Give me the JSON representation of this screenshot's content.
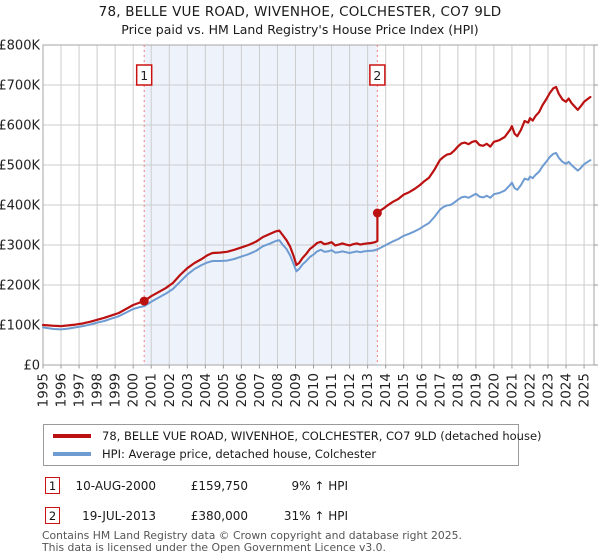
{
  "title": "78, BELLE VUE ROAD, WIVENHOE, COLCHESTER, CO7 9LD",
  "subtitle": "Price paid vs. HM Land Registry's House Price Index (HPI)",
  "chart_data": {
    "type": "line",
    "title": "78, BELLE VUE ROAD, WIVENHOE, COLCHESTER, CO7 9LD",
    "subtitle": "Price paid vs. HM Land Registry's House Price Index (HPI)",
    "grid": true,
    "legend_position": "bottom",
    "x_axis": {
      "min": 1995,
      "max": 2025.55,
      "tick_labels": [
        "1995",
        "1996",
        "1997",
        "1998",
        "1999",
        "2000",
        "2001",
        "2002",
        "2003",
        "2004",
        "2005",
        "2006",
        "2007",
        "2008",
        "2009",
        "2010",
        "2011",
        "2012",
        "2013",
        "2014",
        "2015",
        "2016",
        "2017",
        "2018",
        "2019",
        "2020",
        "2021",
        "2022",
        "2023",
        "2024",
        "2025"
      ]
    },
    "y_axis": {
      "unit": "GBP_thousands",
      "min": 0,
      "max": 800,
      "tick_values": [
        0,
        100,
        200,
        300,
        400,
        500,
        600,
        700,
        800
      ],
      "tick_labels": [
        "£0",
        "£100K",
        "£200K",
        "£300K",
        "£400K",
        "£500K",
        "£600K",
        "£700K",
        "£800K"
      ]
    },
    "shaded_region": {
      "from": 2000.61,
      "to": 2013.54,
      "color": "#eef3fb"
    },
    "event_lines": [
      {
        "label": "1",
        "x": 2000.61
      },
      {
        "label": "2",
        "x": 2013.54
      }
    ],
    "sale_points": [
      {
        "label": "1",
        "x": 2000.61,
        "y": 159.75
      },
      {
        "label": "2",
        "x": 2013.54,
        "y": 380
      }
    ],
    "series": [
      {
        "name": "78, BELLE VUE ROAD, WIVENHOE, COLCHESTER, CO7 9LD (detached house)",
        "color": "#bb1111",
        "width": 2.2,
        "points": [
          [
            1995.0,
            100
          ],
          [
            1995.3,
            99
          ],
          [
            1995.6,
            98
          ],
          [
            1996.0,
            97
          ],
          [
            1996.4,
            99
          ],
          [
            1996.8,
            101
          ],
          [
            1997.2,
            104
          ],
          [
            1997.6,
            108
          ],
          [
            1998.0,
            113
          ],
          [
            1998.4,
            118
          ],
          [
            1998.8,
            124
          ],
          [
            1999.2,
            130
          ],
          [
            1999.6,
            140
          ],
          [
            2000.0,
            150
          ],
          [
            2000.3,
            155
          ],
          [
            2000.61,
            159.75
          ],
          [
            2001.0,
            172
          ],
          [
            2001.4,
            182
          ],
          [
            2001.8,
            192
          ],
          [
            2002.2,
            205
          ],
          [
            2002.6,
            225
          ],
          [
            2003.0,
            242
          ],
          [
            2003.4,
            255
          ],
          [
            2003.8,
            265
          ],
          [
            2004.1,
            274
          ],
          [
            2004.4,
            280
          ],
          [
            2004.8,
            281
          ],
          [
            2005.2,
            283
          ],
          [
            2005.6,
            288
          ],
          [
            2006.0,
            294
          ],
          [
            2006.4,
            300
          ],
          [
            2006.8,
            308
          ],
          [
            2007.2,
            320
          ],
          [
            2007.6,
            328
          ],
          [
            2007.9,
            334
          ],
          [
            2008.1,
            336
          ],
          [
            2008.3,
            324
          ],
          [
            2008.5,
            312
          ],
          [
            2008.7,
            296
          ],
          [
            2008.9,
            272
          ],
          [
            2009.05,
            250
          ],
          [
            2009.2,
            255
          ],
          [
            2009.4,
            268
          ],
          [
            2009.6,
            278
          ],
          [
            2009.8,
            290
          ],
          [
            2010.0,
            297
          ],
          [
            2010.2,
            305
          ],
          [
            2010.4,
            308
          ],
          [
            2010.6,
            302
          ],
          [
            2010.8,
            304
          ],
          [
            2011.0,
            307
          ],
          [
            2011.2,
            299
          ],
          [
            2011.4,
            301
          ],
          [
            2011.6,
            304
          ],
          [
            2011.8,
            301
          ],
          [
            2012.0,
            299
          ],
          [
            2012.2,
            302
          ],
          [
            2012.4,
            304
          ],
          [
            2012.6,
            301
          ],
          [
            2012.8,
            303
          ],
          [
            2013.0,
            304
          ],
          [
            2013.2,
            305
          ],
          [
            2013.4,
            307
          ],
          [
            2013.54,
            310
          ],
          [
            2013.54,
            380
          ],
          [
            2013.7,
            386
          ],
          [
            2013.9,
            392
          ],
          [
            2014.1,
            399
          ],
          [
            2014.4,
            408
          ],
          [
            2014.7,
            415
          ],
          [
            2015.0,
            426
          ],
          [
            2015.3,
            432
          ],
          [
            2015.6,
            440
          ],
          [
            2015.9,
            450
          ],
          [
            2016.1,
            458
          ],
          [
            2016.4,
            468
          ],
          [
            2016.7,
            488
          ],
          [
            2017.0,
            512
          ],
          [
            2017.2,
            520
          ],
          [
            2017.4,
            526
          ],
          [
            2017.6,
            528
          ],
          [
            2017.8,
            536
          ],
          [
            2018.0,
            546
          ],
          [
            2018.2,
            554
          ],
          [
            2018.4,
            556
          ],
          [
            2018.6,
            552
          ],
          [
            2018.8,
            558
          ],
          [
            2019.0,
            560
          ],
          [
            2019.2,
            550
          ],
          [
            2019.4,
            548
          ],
          [
            2019.6,
            553
          ],
          [
            2019.8,
            546
          ],
          [
            2020.0,
            558
          ],
          [
            2020.3,
            562
          ],
          [
            2020.6,
            570
          ],
          [
            2020.9,
            588
          ],
          [
            2021.0,
            597
          ],
          [
            2021.15,
            578
          ],
          [
            2021.3,
            572
          ],
          [
            2021.5,
            588
          ],
          [
            2021.7,
            610
          ],
          [
            2021.9,
            606
          ],
          [
            2022.0,
            617
          ],
          [
            2022.15,
            611
          ],
          [
            2022.3,
            622
          ],
          [
            2022.5,
            632
          ],
          [
            2022.7,
            650
          ],
          [
            2022.9,
            664
          ],
          [
            2023.1,
            680
          ],
          [
            2023.3,
            692
          ],
          [
            2023.45,
            695
          ],
          [
            2023.6,
            678
          ],
          [
            2023.8,
            664
          ],
          [
            2024.0,
            658
          ],
          [
            2024.15,
            666
          ],
          [
            2024.3,
            655
          ],
          [
            2024.5,
            645
          ],
          [
            2024.65,
            638
          ],
          [
            2024.8,
            646
          ],
          [
            2025.0,
            658
          ],
          [
            2025.2,
            665
          ],
          [
            2025.35,
            670
          ]
        ]
      },
      {
        "name": "HPI: Average price, detached house, Colchester",
        "color": "#6e9bd2",
        "width": 2.0,
        "points": [
          [
            1995.0,
            94
          ],
          [
            1995.3,
            92
          ],
          [
            1995.6,
            90
          ],
          [
            1996.0,
            89
          ],
          [
            1996.4,
            91
          ],
          [
            1996.8,
            94
          ],
          [
            1997.2,
            97
          ],
          [
            1997.6,
            101
          ],
          [
            1998.0,
            106
          ],
          [
            1998.4,
            110
          ],
          [
            1998.8,
            116
          ],
          [
            1999.2,
            122
          ],
          [
            1999.6,
            131
          ],
          [
            2000.0,
            140
          ],
          [
            2000.3,
            144
          ],
          [
            2000.61,
            147
          ],
          [
            2001.0,
            158
          ],
          [
            2001.4,
            168
          ],
          [
            2001.8,
            178
          ],
          [
            2002.2,
            190
          ],
          [
            2002.6,
            208
          ],
          [
            2003.0,
            226
          ],
          [
            2003.4,
            240
          ],
          [
            2003.8,
            250
          ],
          [
            2004.1,
            256
          ],
          [
            2004.4,
            260
          ],
          [
            2004.8,
            260
          ],
          [
            2005.2,
            261
          ],
          [
            2005.6,
            265
          ],
          [
            2006.0,
            271
          ],
          [
            2006.4,
            277
          ],
          [
            2006.8,
            285
          ],
          [
            2007.2,
            297
          ],
          [
            2007.6,
            304
          ],
          [
            2007.9,
            310
          ],
          [
            2008.1,
            312
          ],
          [
            2008.3,
            300
          ],
          [
            2008.5,
            290
          ],
          [
            2008.7,
            274
          ],
          [
            2008.9,
            252
          ],
          [
            2009.05,
            234
          ],
          [
            2009.2,
            240
          ],
          [
            2009.4,
            252
          ],
          [
            2009.6,
            260
          ],
          [
            2009.8,
            270
          ],
          [
            2010.0,
            276
          ],
          [
            2010.2,
            284
          ],
          [
            2010.4,
            288
          ],
          [
            2010.6,
            283
          ],
          [
            2010.8,
            284
          ],
          [
            2011.0,
            287
          ],
          [
            2011.2,
            281
          ],
          [
            2011.4,
            282
          ],
          [
            2011.6,
            284
          ],
          [
            2011.8,
            282
          ],
          [
            2012.0,
            280
          ],
          [
            2012.2,
            282
          ],
          [
            2012.4,
            284
          ],
          [
            2012.6,
            282
          ],
          [
            2012.8,
            284
          ],
          [
            2013.0,
            285
          ],
          [
            2013.3,
            286
          ],
          [
            2013.54,
            289
          ],
          [
            2013.8,
            295
          ],
          [
            2014.1,
            302
          ],
          [
            2014.4,
            309
          ],
          [
            2014.7,
            315
          ],
          [
            2015.0,
            323
          ],
          [
            2015.3,
            328
          ],
          [
            2015.6,
            334
          ],
          [
            2015.9,
            341
          ],
          [
            2016.1,
            347
          ],
          [
            2016.4,
            355
          ],
          [
            2016.7,
            370
          ],
          [
            2017.0,
            388
          ],
          [
            2017.2,
            395
          ],
          [
            2017.4,
            399
          ],
          [
            2017.6,
            400
          ],
          [
            2017.8,
            406
          ],
          [
            2018.0,
            413
          ],
          [
            2018.2,
            419
          ],
          [
            2018.4,
            421
          ],
          [
            2018.6,
            418
          ],
          [
            2018.8,
            423
          ],
          [
            2019.0,
            428
          ],
          [
            2019.2,
            421
          ],
          [
            2019.4,
            419
          ],
          [
            2019.6,
            423
          ],
          [
            2019.8,
            418
          ],
          [
            2020.0,
            427
          ],
          [
            2020.3,
            430
          ],
          [
            2020.6,
            436
          ],
          [
            2020.9,
            450
          ],
          [
            2021.0,
            456
          ],
          [
            2021.15,
            442
          ],
          [
            2021.3,
            438
          ],
          [
            2021.5,
            450
          ],
          [
            2021.7,
            466
          ],
          [
            2021.9,
            463
          ],
          [
            2022.0,
            471
          ],
          [
            2022.15,
            467
          ],
          [
            2022.3,
            475
          ],
          [
            2022.5,
            483
          ],
          [
            2022.7,
            497
          ],
          [
            2022.9,
            508
          ],
          [
            2023.1,
            520
          ],
          [
            2023.3,
            528
          ],
          [
            2023.45,
            530
          ],
          [
            2023.6,
            518
          ],
          [
            2023.8,
            508
          ],
          [
            2024.0,
            503
          ],
          [
            2024.15,
            508
          ],
          [
            2024.3,
            500
          ],
          [
            2024.5,
            492
          ],
          [
            2024.65,
            486
          ],
          [
            2024.8,
            492
          ],
          [
            2025.0,
            502
          ],
          [
            2025.2,
            508
          ],
          [
            2025.35,
            512
          ]
        ]
      }
    ],
    "colors": {
      "grid": "#cccccc",
      "plot_border": "#a6a6a6",
      "event_line": "#f47f7f",
      "marker_box_border": "#cc1111",
      "sale_dot": "#bb1111",
      "axis_text": "#222222"
    }
  },
  "legend": {
    "items": [
      {
        "label": "78, BELLE VUE ROAD, WIVENHOE, COLCHESTER, CO7 9LD (detached house)",
        "color": "#bb1111"
      },
      {
        "label": "HPI: Average price, detached house, Colchester",
        "color": "#6e9bd2"
      }
    ]
  },
  "transactions": [
    {
      "num": "1",
      "date": "10-AUG-2000",
      "price": "£159,750",
      "hpi_change": "9% ↑ HPI"
    },
    {
      "num": "2",
      "date": "19-JUL-2013",
      "price": "£380,000",
      "hpi_change": "31% ↑ HPI"
    }
  ],
  "footer": {
    "line1": "Contains HM Land Registry data © Crown copyright and database right 2025.",
    "line2": "This data is licensed under the Open Government Licence v3.0."
  }
}
